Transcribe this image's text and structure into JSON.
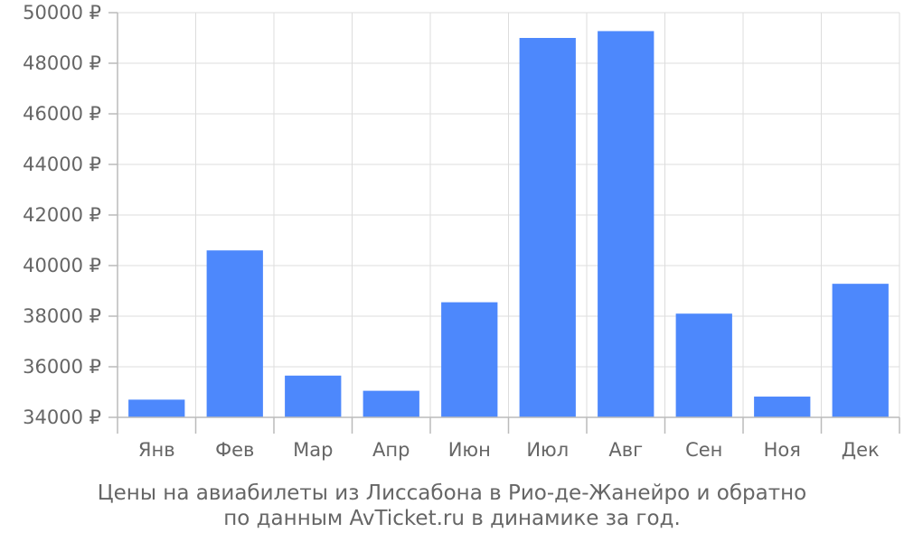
{
  "chart_data": {
    "type": "bar",
    "categories": [
      "Янв",
      "Фев",
      "Мар",
      "Апр",
      "Июн",
      "Июл",
      "Авг",
      "Сен",
      "Ноя",
      "Дек"
    ],
    "values": [
      34700,
      40600,
      35650,
      35050,
      38550,
      49000,
      49270,
      38100,
      34820,
      39280
    ],
    "ylim": [
      34000,
      50000
    ],
    "yticks": [
      34000,
      36000,
      38000,
      40000,
      42000,
      44000,
      46000,
      48000,
      50000
    ],
    "ytick_suffix": " ₽",
    "ytick_labels": [
      "34000 ₽",
      "36000 ₽",
      "38000 ₽",
      "40000 ₽",
      "42000 ₽",
      "44000 ₽",
      "46000 ₽",
      "48000 ₽",
      "50000 ₽"
    ],
    "bar_color": "#4d88fc",
    "grid": true,
    "title_lines": [
      "Цены на авиабилеты из Лиссабона в Рио-де-Жанейро и обратно",
      "по данным AvTicket.ru в динамике за год."
    ]
  }
}
